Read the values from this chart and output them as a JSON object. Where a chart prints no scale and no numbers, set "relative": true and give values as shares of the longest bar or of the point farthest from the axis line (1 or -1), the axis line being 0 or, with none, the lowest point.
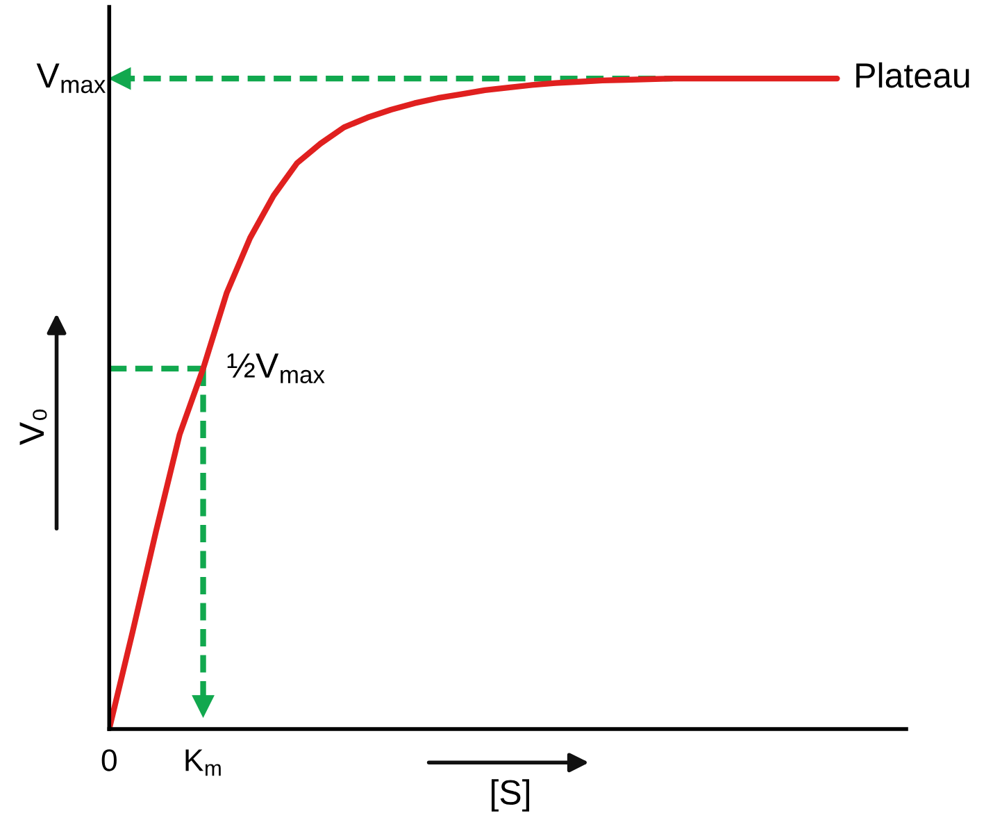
{
  "chart_data": {
    "type": "line",
    "relative": true,
    "xlabel": "[S]",
    "ylabel": "V₀",
    "categories": [
      null,
      null,
      null,
      null,
      null,
      null,
      null,
      null,
      null,
      null,
      null,
      null,
      null,
      null,
      null,
      null,
      null,
      null,
      null,
      null,
      null,
      null,
      null,
      null,
      null,
      null,
      null,
      null,
      null,
      null,
      null,
      null
    ],
    "series": [
      {
        "color": "#e0201f",
        "values": [
          0,
          0.15,
          0.305,
          0.453,
          0.554,
          0.67,
          0.755,
          0.82,
          0.87,
          0.9,
          0.925,
          0.94,
          0.952,
          0.962,
          0.97,
          0.976,
          0.982,
          0.986,
          0.99,
          0.993,
          0.995,
          0.997,
          0.998,
          0.999,
          1.0,
          1.0,
          1.0,
          1.0,
          1.0,
          1.0,
          1.0,
          1.0
        ]
      }
    ],
    "ref_lines": [
      {
        "axis": "y",
        "value": 1,
        "color": "#11a84e",
        "line_style": "dashed"
      },
      {
        "axis": "y",
        "value": 0.554,
        "color": "#11a84e",
        "line_style": "dashed"
      }
    ],
    "annotations": [
      "0",
      "K$_{m}$",
      "V$_{max}$",
      "½V$_{max}$",
      "Plateau"
    ],
    "legend": false,
    "marker": "none",
    "line_style": "solid"
  }
}
